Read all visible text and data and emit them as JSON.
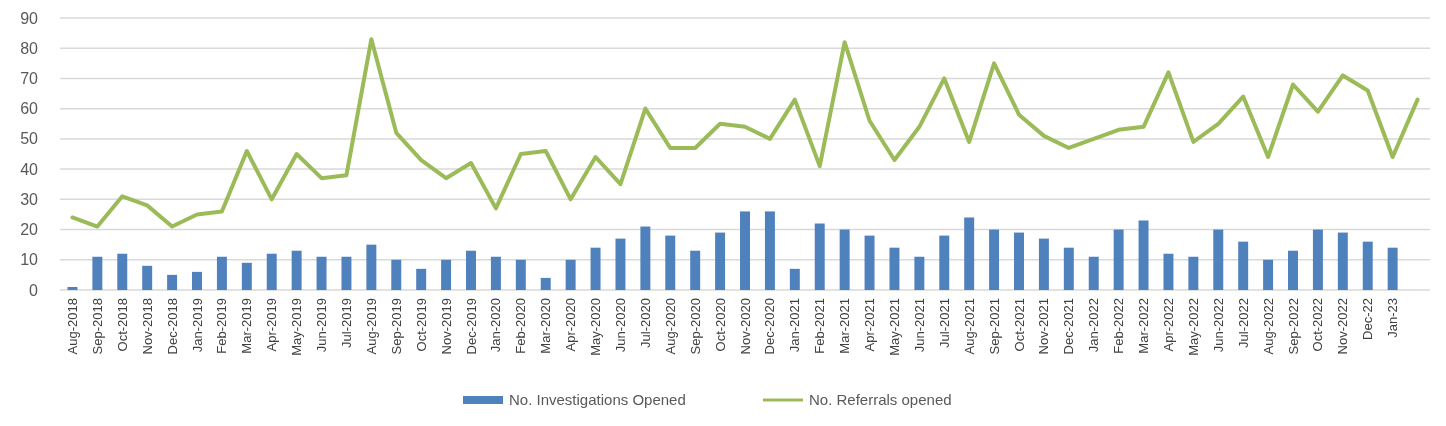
{
  "chart_data": {
    "type": "bar",
    "categories": [
      "Aug-2018",
      "Sep-2018",
      "Oct-2018",
      "Nov-2018",
      "Dec-2018",
      "Jan-2019",
      "Feb-2019",
      "Mar-2019",
      "Apr-2019",
      "May-2019",
      "Jun-2019",
      "Jul-2019",
      "Aug-2019",
      "Sep-2019",
      "Oct-2019",
      "Nov-2019",
      "Dec-2019",
      "Jan-2020",
      "Feb-2020",
      "Mar-2020",
      "Apr-2020",
      "May-2020",
      "Jun-2020",
      "Jul-2020",
      "Aug-2020",
      "Sep-2020",
      "Oct-2020",
      "Nov-2020",
      "Dec-2020",
      "Jan-2021",
      "Feb-2021",
      "Mar-2021",
      "Apr-2021",
      "May-2021",
      "Jun-2021",
      "Jul-2021",
      "Aug-2021",
      "Sep-2021",
      "Oct-2021",
      "Nov-2021",
      "Dec-2021",
      "Jan-2022",
      "Feb-2022",
      "Mar-2022",
      "Apr-2022",
      "May-2022",
      "Jun-2022",
      "Jul-2022",
      "Aug-2022",
      "Sep-2022",
      "Oct-2022",
      "Nov-2022",
      "Dec-22",
      "Jan-23",
      null
    ],
    "series": [
      {
        "name": "No. Investigations Opened",
        "color": "#4f81bd",
        "values": [
          1,
          11,
          12,
          8,
          5,
          6,
          11,
          9,
          12,
          13,
          11,
          11,
          15,
          10,
          7,
          10,
          13,
          11,
          10,
          4,
          10,
          14,
          17,
          21,
          18,
          13,
          19,
          26,
          26,
          7,
          22,
          20,
          18,
          14,
          11,
          18,
          24,
          20,
          19,
          17,
          14,
          11,
          20,
          23,
          12,
          11,
          20,
          16,
          10,
          13,
          20,
          19,
          16,
          14,
          null
        ]
      },
      {
        "name": "No. Referrals opened",
        "type": "line",
        "color": "#9bbb59",
        "values": [
          24,
          21,
          31,
          28,
          21,
          25,
          26,
          46,
          30,
          45,
          37,
          38,
          83,
          52,
          43,
          37,
          42,
          27,
          45,
          46,
          30,
          44,
          35,
          60,
          47,
          47,
          55,
          54,
          50,
          63,
          41,
          82,
          56,
          43,
          54,
          70,
          49,
          75,
          58,
          51,
          47,
          50,
          53,
          54,
          72,
          49,
          55,
          64,
          44,
          68,
          59,
          71,
          66,
          44,
          63
        ]
      }
    ],
    "ylim": [
      0,
      90
    ],
    "yticks": [
      0,
      10,
      20,
      30,
      40,
      50,
      60,
      70,
      80,
      90
    ],
    "grid": "y",
    "legend": "bottom",
    "marker": "none"
  }
}
